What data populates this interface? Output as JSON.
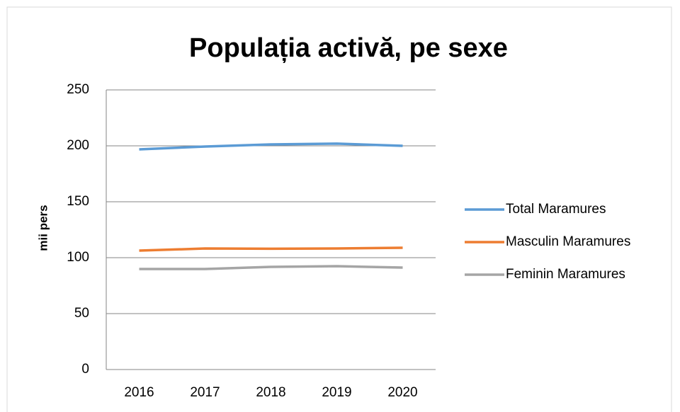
{
  "chart_data": {
    "type": "line",
    "title": "Populația activă, pe sexe",
    "y_label": "mii pers",
    "categories": [
      "2016",
      "2017",
      "2018",
      "2019",
      "2020"
    ],
    "series": [
      {
        "name": "Total Maramures",
        "color": "#5b9bd5",
        "values": [
          196.8,
          199.4,
          201.3,
          202,
          200
        ]
      },
      {
        "name": "Masculin Maramures",
        "color": "#ed7d31",
        "values": [
          106.3,
          108.2,
          108,
          108.2,
          108.9
        ]
      },
      {
        "name": "Feminin Maramures",
        "color": "#a5a5a5",
        "values": [
          89.9,
          89.9,
          91.8,
          92.4,
          91.1
        ]
      }
    ],
    "ylim": [
      0,
      250
    ],
    "yticks": [
      0,
      50,
      100,
      150,
      200,
      250
    ],
    "grid": true,
    "legend": "right"
  }
}
